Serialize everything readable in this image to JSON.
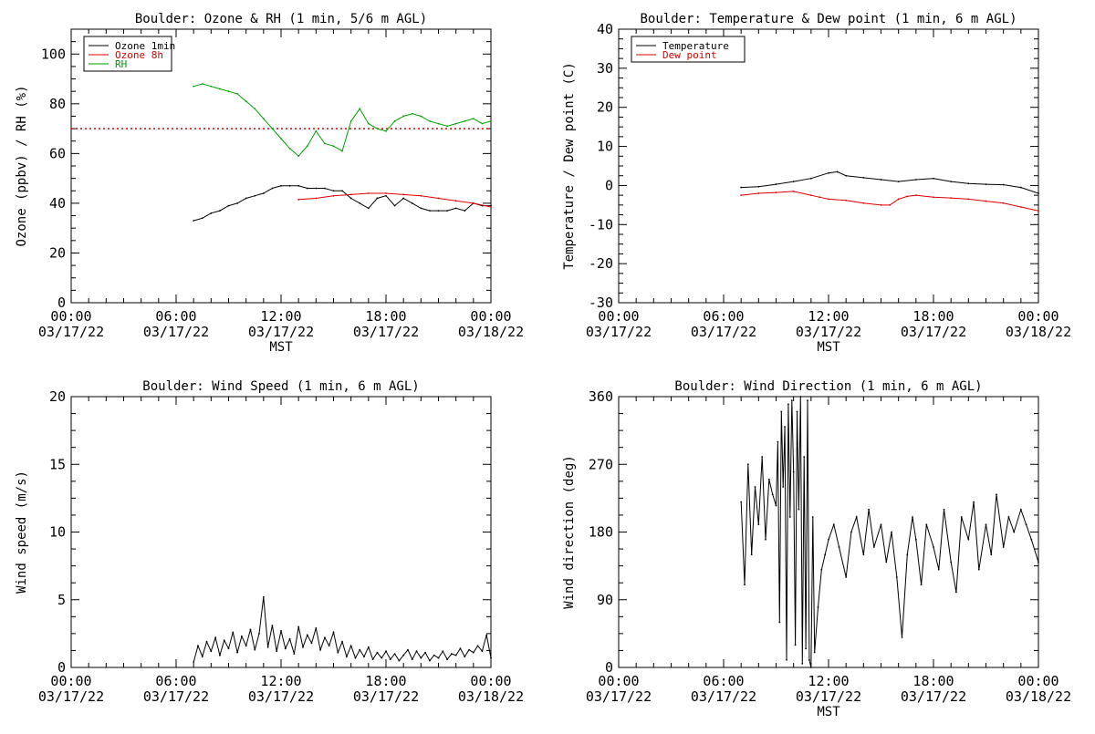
{
  "colors": {
    "ozone_1min": "#000000",
    "ozone_8h": "#dd0000",
    "rh": "#00a000",
    "temperature": "#000000",
    "dew_point": "#dd0000",
    "threshold": "#dd0000"
  },
  "x_ticks": [
    {
      "time": "00:00",
      "date": "03/17/22",
      "hour": 0
    },
    {
      "time": "06:00",
      "date": "03/17/22",
      "hour": 6
    },
    {
      "time": "12:00",
      "date": "03/17/22",
      "hour": 12
    },
    {
      "time": "18:00",
      "date": "03/17/22",
      "hour": 18
    },
    {
      "time": "00:00",
      "date": "03/18/22",
      "hour": 24
    }
  ],
  "chart_data": [
    {
      "type": "line",
      "title": "Boulder: Ozone & RH (1 min, 5/6 m AGL)",
      "xlabel": "MST",
      "ylabel": "Ozone (ppbv) / RH (%)",
      "xlim": [
        0,
        24
      ],
      "ylim": [
        0,
        110
      ],
      "yticks": [
        0,
        20,
        40,
        60,
        80,
        100
      ],
      "legend": {
        "placement": "top-left",
        "entries": [
          "Ozone 1min",
          "Ozone 8h",
          "RH"
        ]
      },
      "reference_line": {
        "y": 70,
        "style": "dotted"
      },
      "series": [
        {
          "name": "Ozone 1min",
          "key": "ozone_1min",
          "x": [
            7.0,
            7.5,
            8.0,
            8.5,
            9.0,
            9.5,
            10.0,
            10.5,
            11.0,
            11.5,
            12.0,
            12.5,
            13.0,
            13.5,
            14.0,
            14.5,
            15.0,
            15.5,
            16.0,
            16.5,
            17.0,
            17.5,
            18.0,
            18.5,
            19.0,
            19.5,
            20.0,
            20.5,
            21.0,
            21.5,
            22.0,
            22.5,
            23.0,
            23.5,
            24.0
          ],
          "y": [
            33,
            34,
            36,
            37,
            39,
            40,
            42,
            43,
            44,
            46,
            47,
            47,
            47,
            46,
            46,
            46,
            45,
            45,
            42,
            40,
            38,
            42,
            43,
            39,
            42,
            40,
            38,
            37,
            37,
            37,
            38,
            37,
            40,
            39,
            39
          ]
        },
        {
          "name": "Ozone 8h",
          "key": "ozone_8h",
          "x": [
            13.0,
            14.0,
            15.0,
            16.0,
            17.0,
            18.0,
            19.0,
            20.0,
            21.0,
            22.0,
            23.0,
            24.0
          ],
          "y": [
            41.5,
            42,
            43,
            43.5,
            44,
            44,
            43.5,
            43,
            42,
            41,
            40,
            38.5
          ]
        },
        {
          "name": "RH",
          "key": "rh",
          "x": [
            7.0,
            7.5,
            8.0,
            8.5,
            9.0,
            9.5,
            10.0,
            10.5,
            11.0,
            11.5,
            12.0,
            12.5,
            13.0,
            13.5,
            14.0,
            14.5,
            15.0,
            15.5,
            16.0,
            16.5,
            17.0,
            17.5,
            18.0,
            18.5,
            19.0,
            19.5,
            20.0,
            20.5,
            21.0,
            21.5,
            22.0,
            22.5,
            23.0,
            23.5,
            24.0
          ],
          "y": [
            87,
            88,
            87,
            86,
            85,
            84,
            81,
            78,
            74,
            70,
            66,
            62,
            59,
            63,
            69,
            64,
            63,
            61,
            73,
            78,
            72,
            70,
            69,
            73,
            75,
            76,
            75,
            73,
            72,
            71,
            72,
            73,
            74,
            72,
            73
          ]
        }
      ]
    },
    {
      "type": "line",
      "title": "Boulder: Temperature & Dew point (1 min, 6 m AGL)",
      "xlabel": "MST",
      "ylabel": "Temperature / Dew point (C)",
      "xlim": [
        0,
        24
      ],
      "ylim": [
        -30,
        40
      ],
      "yticks": [
        -30,
        -20,
        -10,
        0,
        10,
        20,
        30,
        40
      ],
      "legend": {
        "placement": "top-left",
        "entries": [
          "Temperature",
          "Dew point"
        ]
      },
      "series": [
        {
          "name": "Temperature",
          "key": "temperature",
          "x": [
            7.0,
            8.0,
            9.0,
            10.0,
            11.0,
            12.0,
            12.5,
            13.0,
            14.0,
            15.0,
            16.0,
            17.0,
            18.0,
            19.0,
            20.0,
            21.0,
            22.0,
            23.0,
            24.0
          ],
          "y": [
            -0.5,
            -0.3,
            0.3,
            1.0,
            1.8,
            3.2,
            3.5,
            2.5,
            2.0,
            1.5,
            1.0,
            1.5,
            1.8,
            1.0,
            0.5,
            0.3,
            0.2,
            -0.5,
            -2.0
          ]
        },
        {
          "name": "Dew point",
          "key": "dew_point",
          "x": [
            7.0,
            8.0,
            9.0,
            10.0,
            11.0,
            11.5,
            12.0,
            13.0,
            14.0,
            15.0,
            15.5,
            16.0,
            16.5,
            17.0,
            18.0,
            19.0,
            20.0,
            21.0,
            22.0,
            23.0,
            24.0
          ],
          "y": [
            -2.5,
            -2.0,
            -1.8,
            -1.5,
            -2.5,
            -3.0,
            -3.5,
            -3.8,
            -4.5,
            -5.0,
            -5.0,
            -3.5,
            -2.8,
            -2.5,
            -3.0,
            -3.2,
            -3.5,
            -4.0,
            -4.5,
            -5.5,
            -6.5
          ]
        }
      ]
    },
    {
      "type": "line",
      "title": "Boulder: Wind Speed (1 min, 6 m AGL)",
      "xlabel": "",
      "ylabel": "Wind speed (m/s)",
      "xlim": [
        0,
        24
      ],
      "ylim": [
        0,
        20
      ],
      "yticks": [
        0,
        5,
        10,
        15,
        20
      ],
      "series": [
        {
          "key": "wind_speed",
          "x": [
            7.0,
            7.25,
            7.5,
            7.75,
            8.0,
            8.25,
            8.5,
            8.75,
            9.0,
            9.25,
            9.5,
            9.75,
            10.0,
            10.25,
            10.5,
            10.75,
            11.0,
            11.25,
            11.5,
            11.75,
            12.0,
            12.25,
            12.5,
            12.75,
            13.0,
            13.25,
            13.5,
            13.75,
            14.0,
            14.25,
            14.5,
            14.75,
            15.0,
            15.25,
            15.5,
            15.75,
            16.0,
            16.25,
            16.5,
            16.75,
            17.0,
            17.25,
            17.5,
            17.75,
            18.0,
            18.25,
            18.5,
            18.75,
            19.0,
            19.25,
            19.5,
            19.75,
            20.0,
            20.25,
            20.5,
            20.75,
            21.0,
            21.25,
            21.5,
            21.75,
            22.0,
            22.25,
            22.5,
            22.75,
            23.0,
            23.25,
            23.5,
            23.75,
            24.0
          ],
          "y": [
            0.4,
            1.6,
            0.8,
            1.9,
            1.2,
            2.2,
            0.9,
            2.0,
            1.4,
            2.6,
            1.1,
            2.3,
            1.6,
            2.8,
            1.3,
            2.5,
            5.2,
            1.5,
            3.1,
            1.2,
            2.7,
            1.4,
            2.1,
            1.0,
            3.0,
            1.5,
            2.4,
            1.8,
            2.9,
            1.3,
            2.2,
            1.6,
            2.6,
            1.1,
            1.9,
            0.8,
            1.6,
            0.7,
            1.3,
            0.8,
            1.5,
            0.6,
            1.1,
            0.7,
            1.2,
            0.6,
            1.0,
            0.5,
            0.9,
            1.3,
            0.6,
            1.2,
            0.7,
            1.1,
            0.5,
            0.9,
            0.7,
            1.2,
            0.6,
            1.0,
            0.9,
            1.4,
            0.8,
            1.3,
            1.1,
            1.6,
            1.2,
            2.4,
            0.7
          ]
        }
      ]
    },
    {
      "type": "line",
      "title": "Boulder: Wind Direction (1 min, 6 m AGL)",
      "xlabel": "MST",
      "ylabel": "Wind direction (deg)",
      "xlim": [
        0,
        24
      ],
      "ylim": [
        0,
        360
      ],
      "yticks": [
        0,
        90,
        180,
        270,
        360
      ],
      "series": [
        {
          "key": "wind_direction",
          "x": [
            7.0,
            7.2,
            7.4,
            7.6,
            7.8,
            8.0,
            8.2,
            8.4,
            8.6,
            8.8,
            9.0,
            9.1,
            9.2,
            9.3,
            9.4,
            9.5,
            9.6,
            9.7,
            9.8,
            9.9,
            10.0,
            10.1,
            10.2,
            10.3,
            10.4,
            10.5,
            10.6,
            10.7,
            10.8,
            10.9,
            11.0,
            11.1,
            11.2,
            11.4,
            11.6,
            11.8,
            12.0,
            12.3,
            12.6,
            13.0,
            13.3,
            13.6,
            14.0,
            14.3,
            14.6,
            15.0,
            15.3,
            15.6,
            15.9,
            16.2,
            16.5,
            16.8,
            17.0,
            17.3,
            17.6,
            18.0,
            18.3,
            18.6,
            19.0,
            19.3,
            19.6,
            20.0,
            20.3,
            20.6,
            21.0,
            21.3,
            21.6,
            22.0,
            22.3,
            22.6,
            23.0,
            23.3,
            23.6,
            24.0
          ],
          "y": [
            220,
            110,
            270,
            150,
            240,
            190,
            280,
            170,
            250,
            230,
            215,
            300,
            60,
            340,
            240,
            320,
            10,
            350,
            200,
            355,
            260,
            30,
            340,
            210,
            360,
            5,
            280,
            25,
            355,
            10,
            0,
            200,
            20,
            80,
            130,
            150,
            170,
            190,
            160,
            120,
            180,
            200,
            150,
            210,
            160,
            190,
            140,
            180,
            120,
            40,
            150,
            200,
            170,
            110,
            190,
            160,
            130,
            210,
            140,
            100,
            200,
            170,
            220,
            130,
            190,
            150,
            230,
            160,
            200,
            180,
            210,
            190,
            170,
            140
          ]
        }
      ]
    }
  ]
}
